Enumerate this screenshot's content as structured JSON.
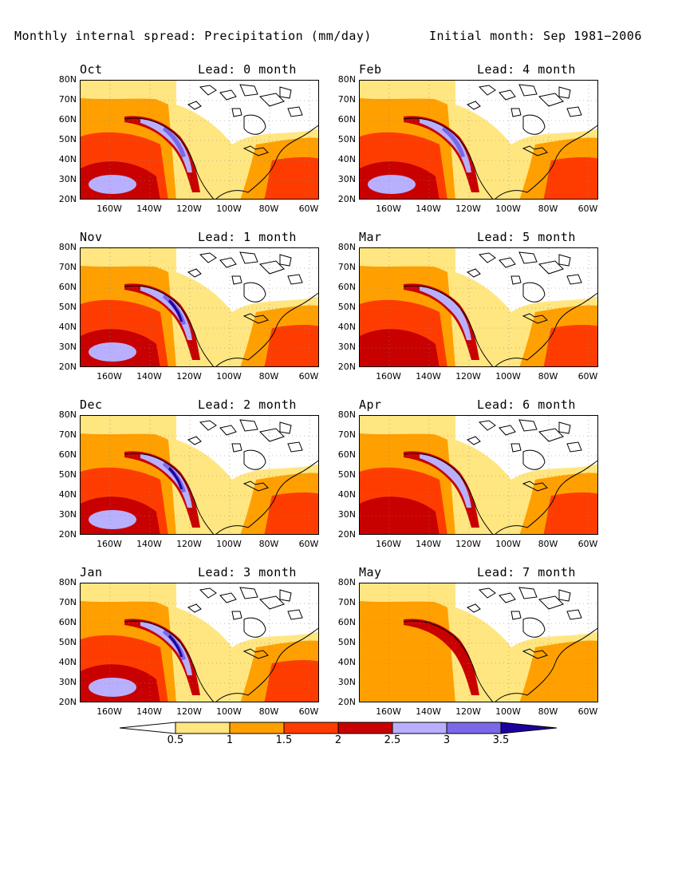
{
  "title_left": "Monthly internal spread: Precipitation (mm/day)",
  "title_right": "Initial month: Sep 1981−2006",
  "lat_labels": [
    "80N",
    "70N",
    "60N",
    "50N",
    "40N",
    "30N",
    "20N"
  ],
  "lon_labels": [
    "160W",
    "140W",
    "120W",
    "100W",
    "80W",
    "60W"
  ],
  "panels": [
    {
      "month": "Oct",
      "lead": "Lead: 0 month",
      "intensity": 2
    },
    {
      "month": "Feb",
      "lead": "Lead: 4 month",
      "intensity": 2
    },
    {
      "month": "Nov",
      "lead": "Lead: 1 month",
      "intensity": 3
    },
    {
      "month": "Mar",
      "lead": "Lead: 5 month",
      "intensity": 1
    },
    {
      "month": "Dec",
      "lead": "Lead: 2 month",
      "intensity": 3
    },
    {
      "month": "Apr",
      "lead": "Lead: 6 month",
      "intensity": 1
    },
    {
      "month": "Jan",
      "lead": "Lead: 3 month",
      "intensity": 3
    },
    {
      "month": "May",
      "lead": "Lead: 7 month",
      "intensity": 0
    }
  ],
  "colorbar": {
    "labels": [
      "0.5",
      "1",
      "1.5",
      "2",
      "2.5",
      "3",
      "3.5"
    ],
    "colors": [
      "#ffffff",
      "#ffe680",
      "#ffa000",
      "#ff3c00",
      "#c80000",
      "#b8b0ff",
      "#7a68e8",
      "#1e00a0"
    ]
  }
}
